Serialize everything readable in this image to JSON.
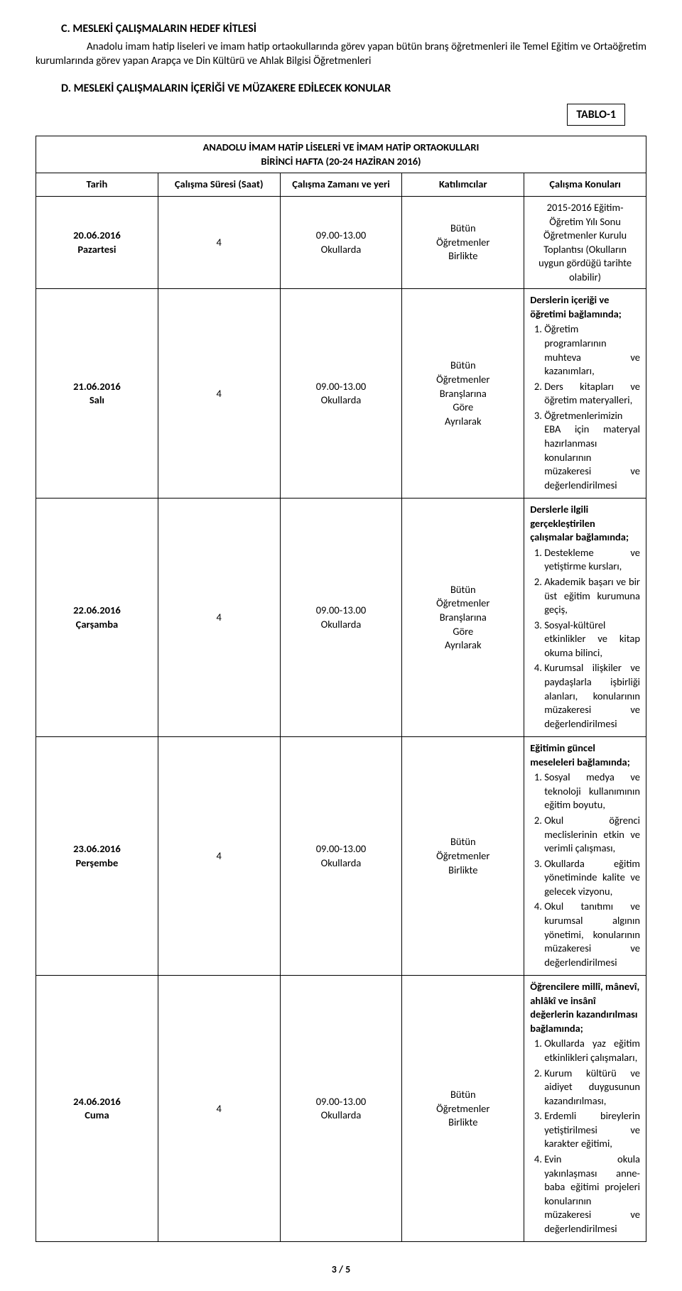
{
  "sectionC": {
    "heading": "C.   MESLEKİ ÇALIŞMALARIN HEDEF KİTLESİ",
    "body": "Anadolu imam hatip liseleri ve imam hatip ortaokullarında görev yapan bütün branş öğretmenleri ile Temel Eğitim ve Ortaöğretim kurumlarında görev yapan Arapça ve Din Kültürü ve Ahlak Bilgisi Öğretmenleri"
  },
  "sectionD": {
    "heading": "D.   MESLEKİ ÇALIŞMALARIN İÇERİĞİ VE MÜZAKERE EDİLECEK KONULAR"
  },
  "tableLabel": "TABLO-1",
  "banner": {
    "line1": "ANADOLU İMAM HATİP LİSELERİ VE İMAM HATİP ORTAOKULLARI",
    "line2": "BİRİNCİ HAFTA (20-24 HAZİRAN 2016)"
  },
  "headers": {
    "date": "Tarih",
    "duration": "Çalışma Süresi (Saat)",
    "time": "Çalışma Zamanı ve yeri",
    "participants": "Katılımcılar",
    "topics": "Çalışma Konuları"
  },
  "rows": [
    {
      "date": "20.06.2016 Pazartesi",
      "dur": "4",
      "time": "09.00-13.00 Okullarda",
      "part": "Bütün Öğretmenler Birlikte",
      "topicHead": "",
      "topicPlain": "2015-2016 Eğitim-Öğretim Yılı Sonu Öğretmenler Kurulu Toplantısı (Okulların uygun gördüğü tarihte olabilir)",
      "items": [],
      "topicCenter": true
    },
    {
      "date": "21.06.2016 Salı",
      "dur": "4",
      "time": "09.00-13.00 Okullarda",
      "part": "Bütün Öğretmenler Branşlarına Göre Ayrılarak",
      "topicHead": "Derslerin içeriği ve öğretimi bağlamında;",
      "topicPlain": "",
      "items": [
        "Öğretim programlarının muhteva ve kazanımları,",
        "Ders kitapları ve öğretim materyalleri,",
        "Öğretmenlerimizin EBA için materyal hazırlanması konularının müzakeresi ve değerlendirilmesi"
      ],
      "topicCenter": false
    },
    {
      "date": "22.06.2016 Çarşamba",
      "dur": "4",
      "time": "09.00-13.00 Okullarda",
      "part": "Bütün Öğretmenler Branşlarına Göre Ayrılarak",
      "topicHead": "Derslerle ilgili gerçekleştirilen çalışmalar bağlamında;",
      "topicPlain": "",
      "items": [
        "Destekleme ve yetiştirme kursları,",
        "Akademik başarı ve bir üst eğitim kurumuna geçiş,",
        "Sosyal-kültürel etkinlikler ve kitap okuma bilinci,",
        "Kurumsal ilişkiler ve paydaşlarla işbirliği alanları, konularının müzakeresi ve değerlendirilmesi"
      ],
      "topicCenter": false
    },
    {
      "date": "23.06.2016 Perşembe",
      "dur": "4",
      "time": "09.00-13.00 Okullarda",
      "part": "Bütün Öğretmenler Birlikte",
      "topicHead": "Eğitimin güncel meseleleri bağlamında;",
      "topicPlain": "",
      "items": [
        "Sosyal medya ve teknoloji kullanımının eğitim boyutu,",
        "Okul öğrenci meclislerinin etkin ve verimli çalışması,",
        "Okullarda eğitim yönetiminde kalite ve gelecek vizyonu,",
        "Okul tanıtımı ve kurumsal algının yönetimi, konularının müzakeresi ve değerlendirilmesi"
      ],
      "topicCenter": false
    },
    {
      "date": "24.06.2016 Cuma",
      "dur": "4",
      "time": "09.00-13.00 Okullarda",
      "part": "Bütün Öğretmenler Birlikte",
      "topicHead": "Öğrencilere millî, mânevî, ahlâkî ve insânî değerlerin kazandırılması bağlamında;",
      "topicPlain": "",
      "items": [
        "Okullarda yaz eğitim etkinlikleri çalışmaları,",
        "Kurum kültürü ve aidiyet duygusunun kazandırılması,",
        "Erdemli bireylerin yetiştirilmesi ve karakter eğitimi,",
        "Evin okula yakınlaşması anne-baba eğitimi projeleri konularının müzakeresi ve değerlendirilmesi"
      ],
      "topicCenter": false
    }
  ],
  "footer": "3 / 5"
}
